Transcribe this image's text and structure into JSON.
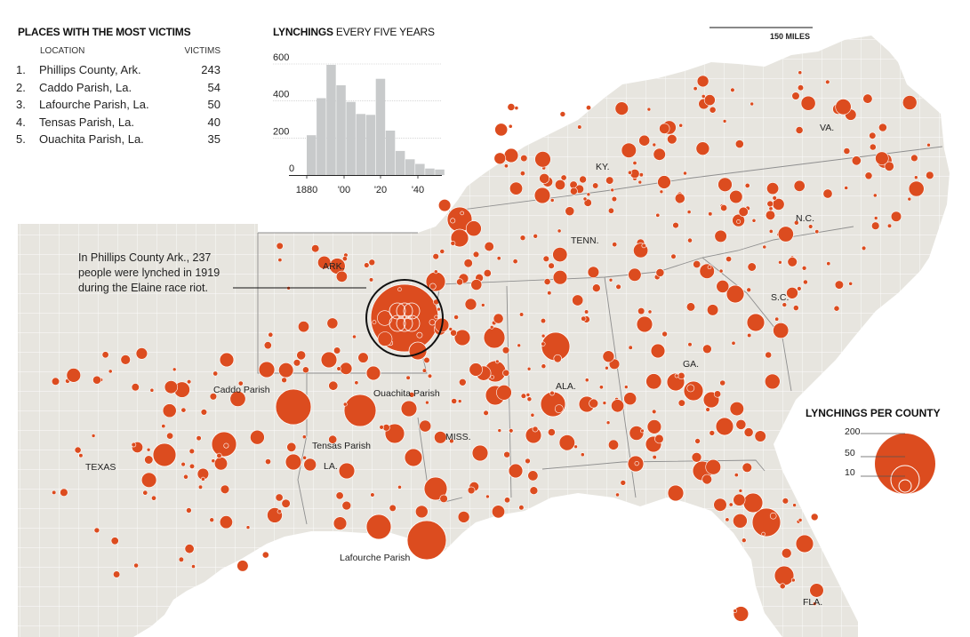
{
  "top_places": {
    "title": "PLACES WITH THE MOST VICTIMS",
    "col_location": "LOCATION",
    "col_victims": "VICTIMS",
    "rows": [
      {
        "rank": "1.",
        "location": "Phillips County, Ark.",
        "victims": "243"
      },
      {
        "rank": "2.",
        "location": "Caddo Parish, La.",
        "victims": "54"
      },
      {
        "rank": "3.",
        "location": "Lafourche Parish, La.",
        "victims": "50"
      },
      {
        "rank": "4.",
        "location": "Tensas Parish, La.",
        "victims": "40"
      },
      {
        "rank": "5.",
        "location": "Ouachita Parish, La.",
        "victims": "35"
      }
    ]
  },
  "histogram": {
    "title_bold": "LYNCHINGS",
    "title_light": " EVERY FIVE YEARS",
    "y_ticks": [
      "600",
      "400",
      "200",
      "0"
    ],
    "x_ticks": [
      "1880",
      "'00",
      "'20",
      "'40"
    ],
    "bar_color": "#c8cacb"
  },
  "chart_data": {
    "type": "bar",
    "title": "LYNCHINGS EVERY FIVE YEARS",
    "x": [
      1880,
      1885,
      1890,
      1895,
      1900,
      1905,
      1910,
      1915,
      1920,
      1925,
      1930,
      1935,
      1940,
      1945
    ],
    "values": [
      215,
      415,
      595,
      485,
      395,
      330,
      325,
      520,
      240,
      130,
      85,
      60,
      35,
      30
    ],
    "ylim": [
      0,
      600
    ],
    "grid": true
  },
  "scale_bar": {
    "label": "150 MILES"
  },
  "map": {
    "land_color": "#e7e5df",
    "water_color": "#ffffff",
    "border_color": "#ffffff",
    "state_line_color": "#8f8f8f",
    "bubble_color": "#dc4c1f",
    "state_labels": [
      "TEXAS",
      "ARK.",
      "LA.",
      "MISS.",
      "TENN.",
      "KY.",
      "ALA.",
      "GA.",
      "S.C.",
      "N.C.",
      "VA.",
      "FLA."
    ],
    "place_labels": [
      "Caddo Parish",
      "Ouachita Parish",
      "Tensas Parish",
      "Lafourche Parish"
    ],
    "highlight": "Phillips County"
  },
  "annotation": {
    "lines": [
      "In Phillips County Ark., 237",
      "people were lynched in 1919",
      "during the Elaine race riot."
    ]
  },
  "legend": {
    "title": "LYNCHINGS PER COUNTY",
    "values": [
      "200",
      "50",
      "10"
    ]
  }
}
